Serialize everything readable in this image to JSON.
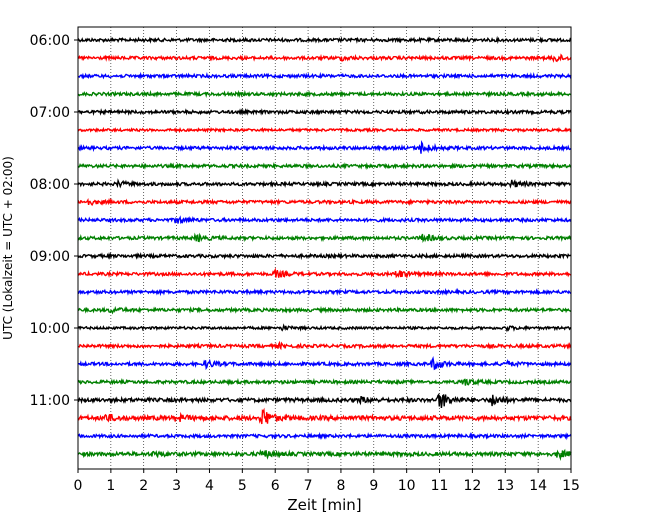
{
  "chart_data": {
    "type": "line",
    "title": "",
    "xlabel": "Zeit  [min]",
    "ylabel": "UTC (Lokalzeit = UTC + 02:00)",
    "xlim": [
      0,
      15
    ],
    "x_ticks": [
      0,
      1,
      2,
      3,
      4,
      5,
      6,
      7,
      8,
      9,
      10,
      11,
      12,
      13,
      14,
      15
    ],
    "y_ticks": [
      "06:00",
      "07:00",
      "08:00",
      "09:00",
      "10:00",
      "11:00"
    ],
    "grid": "vertical-dotted",
    "trace_interval_minutes": 15,
    "start_time": "06:00",
    "trace_colors": [
      "#000000",
      "#ff0000",
      "#0000ff",
      "#008000"
    ],
    "traces": [
      {
        "start": "06:00",
        "color": "#000000",
        "base_amplitude": 0.25,
        "events": []
      },
      {
        "start": "06:15",
        "color": "#ff0000",
        "base_amplitude": 0.25,
        "events": [
          {
            "minute": 14.5,
            "amplitude": 0.6
          },
          {
            "minute": 8.0,
            "amplitude": 0.3
          }
        ]
      },
      {
        "start": "06:30",
        "color": "#0000ff",
        "base_amplitude": 0.25,
        "events": []
      },
      {
        "start": "06:45",
        "color": "#008000",
        "base_amplitude": 0.25,
        "events": []
      },
      {
        "start": "07:00",
        "color": "#000000",
        "base_amplitude": 0.25,
        "events": []
      },
      {
        "start": "07:15",
        "color": "#ff0000",
        "base_amplitude": 0.2,
        "events": []
      },
      {
        "start": "07:30",
        "color": "#0000ff",
        "base_amplitude": 0.25,
        "events": [
          {
            "minute": 10.4,
            "amplitude": 1.0
          }
        ]
      },
      {
        "start": "07:45",
        "color": "#008000",
        "base_amplitude": 0.25,
        "events": []
      },
      {
        "start": "08:00",
        "color": "#000000",
        "base_amplitude": 0.25,
        "events": [
          {
            "minute": 1.2,
            "amplitude": 0.4
          },
          {
            "minute": 13.2,
            "amplitude": 0.5
          }
        ]
      },
      {
        "start": "08:15",
        "color": "#ff0000",
        "base_amplitude": 0.25,
        "events": [
          {
            "minute": 0.3,
            "amplitude": 0.4
          }
        ]
      },
      {
        "start": "08:30",
        "color": "#0000ff",
        "base_amplitude": 0.25,
        "events": [
          {
            "minute": 3.0,
            "amplitude": 0.6
          }
        ]
      },
      {
        "start": "08:45",
        "color": "#008000",
        "base_amplitude": 0.25,
        "events": [
          {
            "minute": 3.6,
            "amplitude": 0.5
          },
          {
            "minute": 10.5,
            "amplitude": 0.6
          }
        ]
      },
      {
        "start": "09:00",
        "color": "#000000",
        "base_amplitude": 0.25,
        "events": []
      },
      {
        "start": "09:15",
        "color": "#ff0000",
        "base_amplitude": 0.25,
        "events": [
          {
            "minute": 6.0,
            "amplitude": 0.6
          },
          {
            "minute": 9.7,
            "amplitude": 0.7
          }
        ]
      },
      {
        "start": "09:30",
        "color": "#0000ff",
        "base_amplitude": 0.25,
        "events": []
      },
      {
        "start": "09:45",
        "color": "#008000",
        "base_amplitude": 0.25,
        "events": [
          {
            "minute": 1.0,
            "amplitude": 0.35
          }
        ]
      },
      {
        "start": "10:00",
        "color": "#000000",
        "base_amplitude": 0.2,
        "events": [
          {
            "minute": 6.2,
            "amplitude": 0.3
          },
          {
            "minute": 13.0,
            "amplitude": 0.3
          }
        ]
      },
      {
        "start": "10:15",
        "color": "#ff0000",
        "base_amplitude": 0.25,
        "events": [
          {
            "minute": 6.1,
            "amplitude": 0.3
          }
        ]
      },
      {
        "start": "10:30",
        "color": "#0000ff",
        "base_amplitude": 0.25,
        "events": [
          {
            "minute": 3.9,
            "amplitude": 0.6
          },
          {
            "minute": 10.8,
            "amplitude": 0.9
          },
          {
            "minute": 13.0,
            "amplitude": 0.4
          }
        ]
      },
      {
        "start": "10:45",
        "color": "#008000",
        "base_amplitude": 0.25,
        "events": [
          {
            "minute": 11.7,
            "amplitude": 0.6
          }
        ]
      },
      {
        "start": "11:00",
        "color": "#000000",
        "base_amplitude": 0.3,
        "events": [
          {
            "minute": 11.0,
            "amplitude": 1.5
          },
          {
            "minute": 12.6,
            "amplitude": 0.9
          },
          {
            "minute": 8.6,
            "amplitude": 0.4
          }
        ]
      },
      {
        "start": "11:15",
        "color": "#ff0000",
        "base_amplitude": 0.35,
        "events": [
          {
            "minute": 5.6,
            "amplitude": 1.6
          },
          {
            "minute": 0.8,
            "amplitude": 0.6
          },
          {
            "minute": 3.0,
            "amplitude": 0.5
          }
        ]
      },
      {
        "start": "11:30",
        "color": "#0000ff",
        "base_amplitude": 0.25,
        "events": []
      },
      {
        "start": "11:45",
        "color": "#008000",
        "base_amplitude": 0.3,
        "events": [
          {
            "minute": 2.3,
            "amplitude": 0.4
          },
          {
            "minute": 5.6,
            "amplitude": 0.6
          },
          {
            "minute": 14.6,
            "amplitude": 0.6
          }
        ]
      }
    ]
  }
}
